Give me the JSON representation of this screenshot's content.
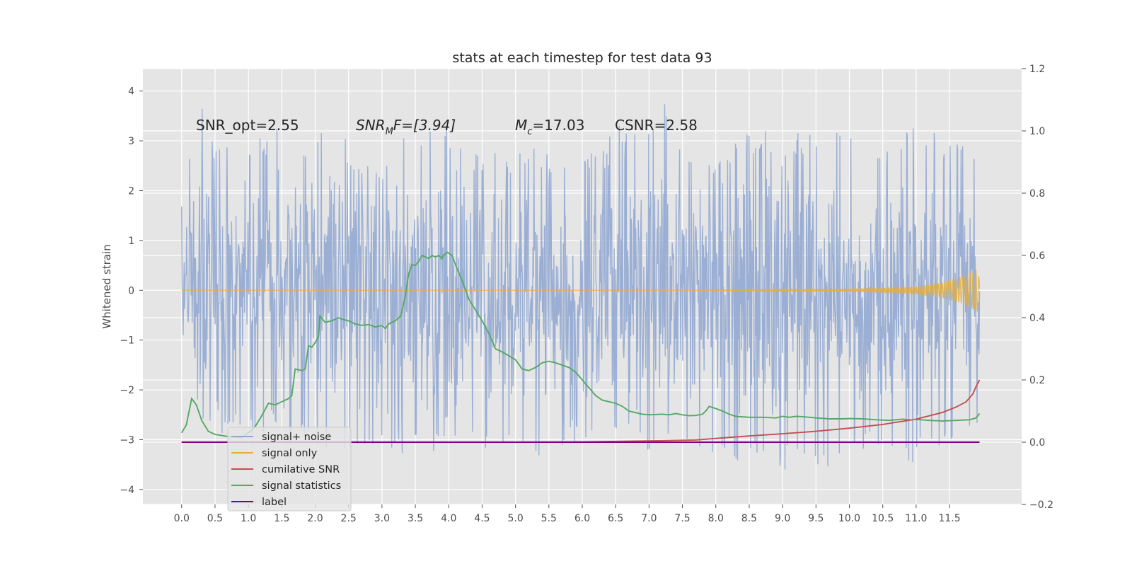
{
  "chart_data": {
    "type": "line",
    "title": "stats at each timestep for test data 93",
    "ylabel": "Whitened strain",
    "xlabel": "",
    "xlim": [
      -0.58,
      12.58
    ],
    "ylim": [
      -4.3,
      4.45
    ],
    "y2lim": [
      -0.2,
      1.2
    ],
    "x_ticks": [
      0.0,
      0.5,
      1.0,
      1.5,
      2.0,
      2.5,
      3.0,
      3.5,
      4.0,
      4.5,
      5.0,
      5.5,
      6.0,
      6.5,
      7.0,
      7.5,
      8.0,
      8.5,
      9.0,
      9.5,
      10.0,
      10.5,
      11.0,
      11.5
    ],
    "x_tick_labels": [
      "0.0",
      "0.5",
      "1.0",
      "1.5",
      "2.0",
      "2.5",
      "3.0",
      "3.5",
      "4.0",
      "4.5",
      "5.0",
      "5.5",
      "6.0",
      "6.5",
      "7.0",
      "7.5",
      "8.0",
      "8.5",
      "9.0",
      "9.5",
      "10.0",
      "10.5",
      "11.0",
      "11.5"
    ],
    "y_ticks": [
      4,
      3,
      2,
      1,
      0,
      -1,
      -2,
      -3,
      -4
    ],
    "y_tick_labels": [
      "4",
      "3",
      "2",
      "1",
      "0",
      "−1",
      "−2",
      "−3",
      "−4"
    ],
    "y2_ticks": [
      1.2,
      1.0,
      0.8,
      0.6,
      0.4,
      0.2,
      0.0,
      -0.2
    ],
    "y2_tick_labels": [
      "1.2",
      "1.0",
      "0.8",
      "0.6",
      "0.4",
      "0.2",
      "0.0",
      "−0.2"
    ],
    "grid": true,
    "legend_position": "lower-left",
    "annotations": {
      "snr_opt": "SNR_opt=2.55",
      "snr_mf_base": "SNR",
      "snr_mf_sub": "M",
      "snr_mf_rest": "F=[3.94]",
      "mc_base": "M",
      "mc_sub": "c",
      "mc_rest": "=17.03",
      "csnr": "CSNR=2.58"
    },
    "series": [
      {
        "name": "signal+ noise",
        "axis": "left",
        "color": "#92a8d1",
        "x_range": [
          0.0,
          11.95
        ],
        "envelope_upper": [
          [
            0.0,
            1.9
          ],
          [
            0.3,
            4.1
          ],
          [
            0.5,
            3.0
          ],
          [
            1.0,
            2.8
          ],
          [
            1.4,
            3.4
          ],
          [
            1.5,
            2.9
          ],
          [
            2.0,
            2.9
          ],
          [
            2.3,
            3.9
          ],
          [
            2.5,
            2.8
          ],
          [
            3.0,
            2.6
          ],
          [
            3.5,
            3.3
          ],
          [
            4.0,
            3.3
          ],
          [
            4.5,
            2.6
          ],
          [
            5.0,
            3.0
          ],
          [
            5.5,
            2.8
          ],
          [
            6.0,
            2.6
          ],
          [
            6.5,
            3.4
          ],
          [
            7.0,
            3.2
          ],
          [
            7.3,
            3.95
          ],
          [
            7.5,
            3.0
          ],
          [
            8.0,
            2.7
          ],
          [
            8.5,
            3.3
          ],
          [
            9.0,
            3.1
          ],
          [
            9.5,
            3.3
          ],
          [
            10.0,
            3.2
          ],
          [
            10.5,
            3.1
          ],
          [
            11.0,
            3.5
          ],
          [
            11.5,
            3.1
          ],
          [
            11.95,
            2.8
          ]
        ],
        "envelope_lower": [
          [
            0.0,
            -1.5
          ],
          [
            0.3,
            -3.3
          ],
          [
            0.5,
            -2.9
          ],
          [
            1.0,
            -2.9
          ],
          [
            1.5,
            -3.1
          ],
          [
            2.0,
            -3.2
          ],
          [
            2.5,
            -3.3
          ],
          [
            3.0,
            -3.4
          ],
          [
            3.5,
            -3.2
          ],
          [
            4.0,
            -3.4
          ],
          [
            4.5,
            -3.2
          ],
          [
            5.0,
            -3.6
          ],
          [
            5.5,
            -3.2
          ],
          [
            6.0,
            -3.0
          ],
          [
            6.5,
            -3.0
          ],
          [
            7.0,
            -3.3
          ],
          [
            7.5,
            -3.3
          ],
          [
            8.0,
            -3.3
          ],
          [
            8.5,
            -3.5
          ],
          [
            9.0,
            -3.6
          ],
          [
            9.5,
            -3.7
          ],
          [
            10.0,
            -3.3
          ],
          [
            10.5,
            -3.2
          ],
          [
            11.0,
            -3.5
          ],
          [
            11.5,
            -3.1
          ],
          [
            11.95,
            -3.0
          ]
        ]
      },
      {
        "name": "signal only",
        "axis": "left",
        "color": "#e5ae38",
        "envelope": [
          [
            0.0,
            0.0
          ],
          [
            7.5,
            0.0
          ],
          [
            8.5,
            0.01
          ],
          [
            9.5,
            0.02
          ],
          [
            10.0,
            0.03
          ],
          [
            10.5,
            0.05
          ],
          [
            11.0,
            0.08
          ],
          [
            11.4,
            0.16
          ],
          [
            11.7,
            0.28
          ],
          [
            11.85,
            0.38
          ],
          [
            11.92,
            0.45
          ],
          [
            11.95,
            0.2
          ]
        ]
      },
      {
        "name": "cumilative SNR",
        "axis": "right",
        "color": "#c44e52",
        "points": [
          [
            0.0,
            0.0
          ],
          [
            5.0,
            0.0
          ],
          [
            6.0,
            0.001
          ],
          [
            7.0,
            0.004
          ],
          [
            7.7,
            0.007
          ],
          [
            8.0,
            0.012
          ],
          [
            8.5,
            0.02
          ],
          [
            9.0,
            0.027
          ],
          [
            9.5,
            0.035
          ],
          [
            10.0,
            0.045
          ],
          [
            10.5,
            0.057
          ],
          [
            11.0,
            0.074
          ],
          [
            11.4,
            0.096
          ],
          [
            11.6,
            0.113
          ],
          [
            11.75,
            0.13
          ],
          [
            11.85,
            0.155
          ],
          [
            11.9,
            0.18
          ],
          [
            11.95,
            0.2
          ]
        ]
      },
      {
        "name": "signal statistics",
        "axis": "right",
        "color": "#55a868",
        "points": [
          [
            0.0,
            0.03
          ],
          [
            0.07,
            0.055
          ],
          [
            0.15,
            0.14
          ],
          [
            0.22,
            0.12
          ],
          [
            0.3,
            0.07
          ],
          [
            0.4,
            0.035
          ],
          [
            0.5,
            0.025
          ],
          [
            0.7,
            0.018
          ],
          [
            0.9,
            0.015
          ],
          [
            1.0,
            0.03
          ],
          [
            1.1,
            0.05
          ],
          [
            1.2,
            0.085
          ],
          [
            1.3,
            0.125
          ],
          [
            1.4,
            0.12
          ],
          [
            1.5,
            0.13
          ],
          [
            1.6,
            0.14
          ],
          [
            1.65,
            0.15
          ],
          [
            1.7,
            0.235
          ],
          [
            1.8,
            0.23
          ],
          [
            1.85,
            0.235
          ],
          [
            1.9,
            0.31
          ],
          [
            1.95,
            0.305
          ],
          [
            2.0,
            0.32
          ],
          [
            2.05,
            0.34
          ],
          [
            2.07,
            0.405
          ],
          [
            2.15,
            0.385
          ],
          [
            2.25,
            0.39
          ],
          [
            2.35,
            0.4
          ],
          [
            2.4,
            0.395
          ],
          [
            2.5,
            0.39
          ],
          [
            2.6,
            0.38
          ],
          [
            2.7,
            0.375
          ],
          [
            2.8,
            0.378
          ],
          [
            2.9,
            0.37
          ],
          [
            3.0,
            0.375
          ],
          [
            3.05,
            0.365
          ],
          [
            3.1,
            0.38
          ],
          [
            3.2,
            0.39
          ],
          [
            3.28,
            0.405
          ],
          [
            3.35,
            0.47
          ],
          [
            3.4,
            0.54
          ],
          [
            3.45,
            0.57
          ],
          [
            3.5,
            0.568
          ],
          [
            3.55,
            0.58
          ],
          [
            3.6,
            0.6
          ],
          [
            3.7,
            0.59
          ],
          [
            3.75,
            0.6
          ],
          [
            3.8,
            0.595
          ],
          [
            3.85,
            0.6
          ],
          [
            3.9,
            0.59
          ],
          [
            3.92,
            0.6
          ],
          [
            3.98,
            0.61
          ],
          [
            4.05,
            0.6
          ],
          [
            4.1,
            0.57
          ],
          [
            4.2,
            0.52
          ],
          [
            4.3,
            0.46
          ],
          [
            4.5,
            0.39
          ],
          [
            4.6,
            0.35
          ],
          [
            4.7,
            0.3
          ],
          [
            4.8,
            0.29
          ],
          [
            5.0,
            0.265
          ],
          [
            5.1,
            0.235
          ],
          [
            5.2,
            0.23
          ],
          [
            5.3,
            0.24
          ],
          [
            5.4,
            0.255
          ],
          [
            5.5,
            0.26
          ],
          [
            5.6,
            0.255
          ],
          [
            5.8,
            0.24
          ],
          [
            5.9,
            0.225
          ],
          [
            6.0,
            0.2
          ],
          [
            6.1,
            0.175
          ],
          [
            6.2,
            0.15
          ],
          [
            6.3,
            0.135
          ],
          [
            6.5,
            0.125
          ],
          [
            6.6,
            0.115
          ],
          [
            6.7,
            0.1
          ],
          [
            6.9,
            0.09
          ],
          [
            7.0,
            0.088
          ],
          [
            7.2,
            0.09
          ],
          [
            7.3,
            0.088
          ],
          [
            7.4,
            0.092
          ],
          [
            7.5,
            0.088
          ],
          [
            7.6,
            0.085
          ],
          [
            7.7,
            0.086
          ],
          [
            7.8,
            0.09
          ],
          [
            7.85,
            0.1
          ],
          [
            7.9,
            0.115
          ],
          [
            8.0,
            0.108
          ],
          [
            8.1,
            0.1
          ],
          [
            8.2,
            0.09
          ],
          [
            8.3,
            0.083
          ],
          [
            8.5,
            0.08
          ],
          [
            8.7,
            0.08
          ],
          [
            8.9,
            0.078
          ],
          [
            9.0,
            0.083
          ],
          [
            9.1,
            0.08
          ],
          [
            9.2,
            0.083
          ],
          [
            9.3,
            0.082
          ],
          [
            9.4,
            0.08
          ],
          [
            9.5,
            0.078
          ],
          [
            9.7,
            0.075
          ],
          [
            9.9,
            0.075
          ],
          [
            10.0,
            0.076
          ],
          [
            10.2,
            0.075
          ],
          [
            10.4,
            0.072
          ],
          [
            10.6,
            0.07
          ],
          [
            10.8,
            0.074
          ],
          [
            10.9,
            0.072
          ],
          [
            11.0,
            0.073
          ],
          [
            11.2,
            0.07
          ],
          [
            11.4,
            0.068
          ],
          [
            11.6,
            0.07
          ],
          [
            11.8,
            0.072
          ],
          [
            11.9,
            0.078
          ],
          [
            11.95,
            0.092
          ]
        ]
      },
      {
        "name": "label",
        "axis": "right",
        "color": "#800080",
        "points": [
          [
            0.0,
            0.0
          ],
          [
            11.95,
            0.0
          ]
        ]
      }
    ]
  },
  "colors": {
    "axes_bg": "#e5e5e5",
    "grid": "#ffffff",
    "figure_bg": "#ffffff"
  }
}
